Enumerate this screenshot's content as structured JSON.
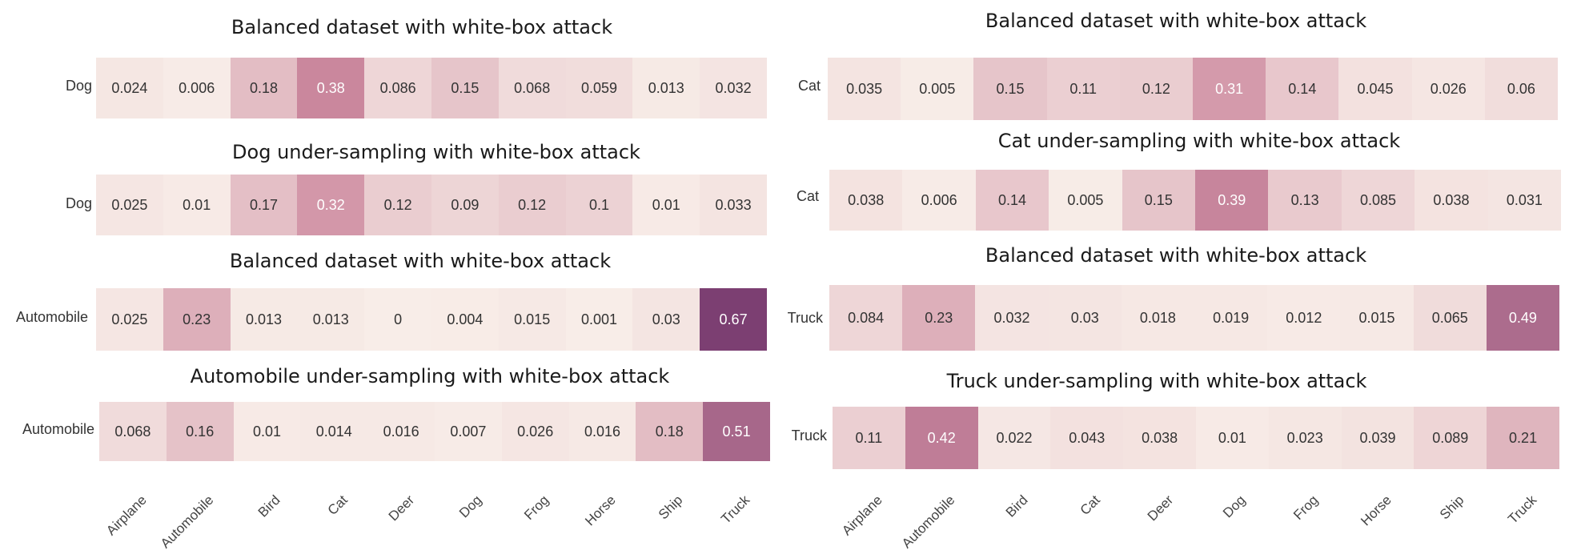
{
  "chart_data": [
    {
      "type": "heatmap",
      "title": "Balanced dataset with white-box attack",
      "row_label": "Dog",
      "categories": [
        "Airplane",
        "Automobile",
        "Bird",
        "Cat",
        "Deer",
        "Dog",
        "Frog",
        "Horse",
        "Ship",
        "Truck"
      ],
      "values": [
        "0.024",
        "0.006",
        "0.18",
        "0.38",
        "0.086",
        "0.15",
        "0.068",
        "0.059",
        "0.013",
        "0.032"
      ]
    },
    {
      "type": "heatmap",
      "title": "Dog under-sampling with white-box attack",
      "row_label": "Dog",
      "categories": [
        "Airplane",
        "Automobile",
        "Bird",
        "Cat",
        "Deer",
        "Dog",
        "Frog",
        "Horse",
        "Ship",
        "Truck"
      ],
      "values": [
        "0.025",
        "0.01",
        "0.17",
        "0.32",
        "0.12",
        "0.09",
        "0.12",
        "0.1",
        "0.01",
        "0.033"
      ]
    },
    {
      "type": "heatmap",
      "title": "Balanced dataset with white-box attack",
      "row_label": "Automobile",
      "categories": [
        "Airplane",
        "Automobile",
        "Bird",
        "Cat",
        "Deer",
        "Dog",
        "Frog",
        "Horse",
        "Ship",
        "Truck"
      ],
      "values": [
        "0.025",
        "0.23",
        "0.013",
        "0.013",
        "0",
        "0.004",
        "0.015",
        "0.001",
        "0.03",
        "0.67"
      ]
    },
    {
      "type": "heatmap",
      "title": "Automobile under-sampling with white-box attack",
      "row_label": "Automobile",
      "categories": [
        "Airplane",
        "Automobile",
        "Bird",
        "Cat",
        "Deer",
        "Dog",
        "Frog",
        "Horse",
        "Ship",
        "Truck"
      ],
      "values": [
        "0.068",
        "0.16",
        "0.01",
        "0.014",
        "0.016",
        "0.007",
        "0.026",
        "0.016",
        "0.18",
        "0.51"
      ]
    },
    {
      "type": "heatmap",
      "title": "Balanced dataset with white-box attack",
      "row_label": "Cat",
      "categories": [
        "Airplane",
        "Automobile",
        "Bird",
        "Cat",
        "Deer",
        "Dog",
        "Frog",
        "Horse",
        "Ship",
        "Truck"
      ],
      "values": [
        "0.035",
        "0.005",
        "0.15",
        "0.11",
        "0.12",
        "0.31",
        "0.14",
        "0.045",
        "0.026",
        "0.06"
      ]
    },
    {
      "type": "heatmap",
      "title": "Cat under-sampling with white-box attack",
      "row_label": "Cat",
      "categories": [
        "Airplane",
        "Automobile",
        "Bird",
        "Cat",
        "Deer",
        "Dog",
        "Frog",
        "Horse",
        "Ship",
        "Truck"
      ],
      "values": [
        "0.038",
        "0.006",
        "0.14",
        "0.005",
        "0.15",
        "0.39",
        "0.13",
        "0.085",
        "0.038",
        "0.031"
      ]
    },
    {
      "type": "heatmap",
      "title": "Balanced dataset with white-box attack",
      "row_label": "Truck",
      "categories": [
        "Airplane",
        "Automobile",
        "Bird",
        "Cat",
        "Deer",
        "Dog",
        "Frog",
        "Horse",
        "Ship",
        "Truck"
      ],
      "values": [
        "0.084",
        "0.23",
        "0.032",
        "0.03",
        "0.018",
        "0.019",
        "0.012",
        "0.015",
        "0.065",
        "0.49"
      ]
    },
    {
      "type": "heatmap",
      "title": "Truck under-sampling with white-box attack",
      "row_label": "Truck",
      "categories": [
        "Airplane",
        "Automobile",
        "Bird",
        "Cat",
        "Deer",
        "Dog",
        "Frog",
        "Horse",
        "Ship",
        "Truck"
      ],
      "values": [
        "0.11",
        "0.42",
        "0.022",
        "0.043",
        "0.038",
        "0.01",
        "0.023",
        "0.039",
        "0.089",
        "0.21"
      ]
    }
  ],
  "x_tick_labels": {
    "left": [
      "Airplane",
      "Automobile",
      "Bird",
      "Cat",
      "Deer",
      "Dog",
      "Frog",
      "Horse",
      "Ship",
      "Truck"
    ],
    "right": [
      "Airplane",
      "Automobile",
      "Bird",
      "Cat",
      "Deer",
      "Dog",
      "Frog",
      "Horse",
      "Ship",
      "Truck"
    ]
  },
  "colors": {
    "low": "#f8ede8",
    "mid": "#cd8a9f",
    "high": "#7c3f72",
    "text_dark": "#333333",
    "text_light": "#ffffff"
  }
}
